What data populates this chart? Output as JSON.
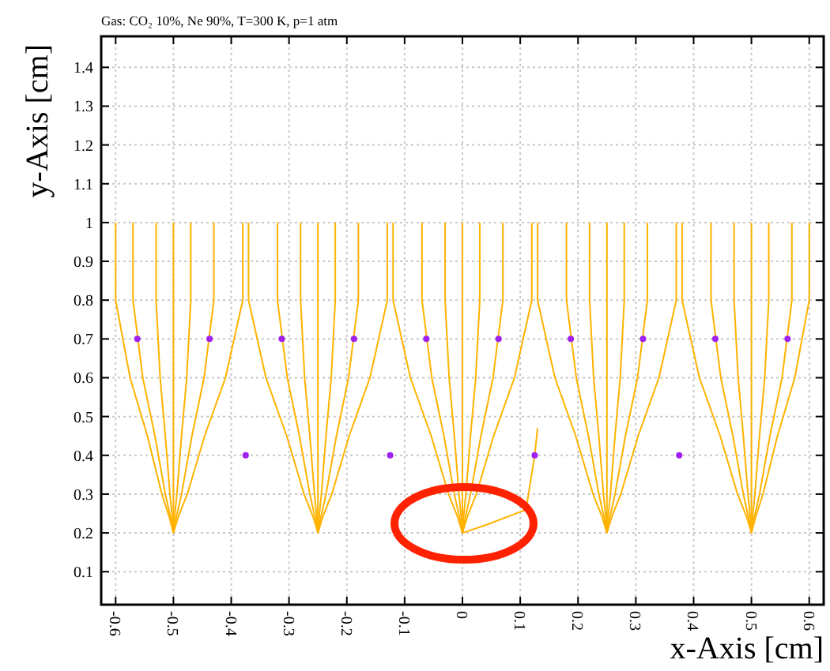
{
  "chart_data": {
    "type": "line",
    "title": "Gas: CO₂ 10%, Ne 90%, T=300 K, p=1 atm",
    "xlabel": "x-Axis [cm]",
    "ylabel": "y-Axis [cm]",
    "xlim": [
      -0.625,
      0.625
    ],
    "xticks": [
      -0.6,
      -0.5,
      -0.4,
      -0.3,
      -0.2,
      -0.1,
      0,
      0.1,
      0.2,
      0.3,
      0.4,
      0.5,
      0.6
    ],
    "ylim": [
      0.015,
      1.48
    ],
    "yticks": [
      0.1,
      0.2,
      0.3,
      0.4,
      0.5,
      0.6,
      0.7,
      0.8,
      0.9,
      1,
      1.1,
      1.2,
      1.3,
      1.4
    ],
    "grid": true,
    "line_style": "solid",
    "series": [
      {
        "color": "#ffb300",
        "x": [
          -0.6,
          -0.6,
          -0.575,
          -0.545,
          -0.52,
          -0.507,
          -0.5
        ],
        "values": [
          1,
          0.8,
          0.6,
          0.45,
          0.3,
          0.24,
          0.2
        ]
      },
      {
        "color": "#ffb300",
        "x": [
          -0.57,
          -0.57,
          -0.553,
          -0.532,
          -0.514,
          -0.505,
          -0.5
        ],
        "values": [
          1,
          0.8,
          0.6,
          0.45,
          0.3,
          0.24,
          0.2
        ]
      },
      {
        "color": "#ffb300",
        "x": [
          -0.53,
          -0.53,
          -0.523,
          -0.514,
          -0.506,
          -0.502,
          -0.5
        ],
        "values": [
          1,
          0.8,
          0.6,
          0.45,
          0.3,
          0.24,
          0.2
        ]
      },
      {
        "color": "#ffb300",
        "x": [
          -0.5,
          -0.5,
          -0.5,
          -0.5,
          -0.5,
          -0.5,
          -0.5
        ],
        "values": [
          1,
          0.8,
          0.6,
          0.45,
          0.3,
          0.24,
          0.2
        ]
      },
      {
        "color": "#ffb300",
        "x": [
          -0.47,
          -0.47,
          -0.477,
          -0.486,
          -0.494,
          -0.498,
          -0.5
        ],
        "values": [
          1,
          0.8,
          0.6,
          0.45,
          0.3,
          0.24,
          0.2
        ]
      },
      {
        "color": "#ffb300",
        "x": [
          -0.43,
          -0.43,
          -0.447,
          -0.468,
          -0.486,
          -0.495,
          -0.5
        ],
        "values": [
          1,
          0.8,
          0.6,
          0.45,
          0.3,
          0.24,
          0.2
        ]
      },
      {
        "color": "#ffb300",
        "x": [
          -0.38,
          -0.38,
          -0.41,
          -0.446,
          -0.476,
          -0.492,
          -0.5
        ],
        "values": [
          1,
          0.8,
          0.6,
          0.45,
          0.3,
          0.24,
          0.2
        ]
      },
      {
        "color": "#ffb300",
        "x": [
          -0.37,
          -0.37,
          -0.34,
          -0.304,
          -0.274,
          -0.258,
          -0.25
        ],
        "values": [
          1,
          0.8,
          0.6,
          0.45,
          0.3,
          0.24,
          0.2
        ]
      },
      {
        "color": "#ffb300",
        "x": [
          -0.32,
          -0.32,
          -0.303,
          -0.282,
          -0.264,
          -0.255,
          -0.25
        ],
        "values": [
          1,
          0.8,
          0.6,
          0.45,
          0.3,
          0.24,
          0.2
        ]
      },
      {
        "color": "#ffb300",
        "x": [
          -0.28,
          -0.28,
          -0.273,
          -0.264,
          -0.256,
          -0.252,
          -0.25
        ],
        "values": [
          1,
          0.8,
          0.6,
          0.45,
          0.3,
          0.24,
          0.2
        ]
      },
      {
        "color": "#ffb300",
        "x": [
          -0.25,
          -0.25,
          -0.25,
          -0.25,
          -0.25,
          -0.25,
          -0.25
        ],
        "values": [
          1,
          0.8,
          0.6,
          0.45,
          0.3,
          0.24,
          0.2
        ]
      },
      {
        "color": "#ffb300",
        "x": [
          -0.22,
          -0.22,
          -0.227,
          -0.236,
          -0.244,
          -0.248,
          -0.25
        ],
        "values": [
          1,
          0.8,
          0.6,
          0.45,
          0.3,
          0.24,
          0.2
        ]
      },
      {
        "color": "#ffb300",
        "x": [
          -0.18,
          -0.18,
          -0.197,
          -0.218,
          -0.236,
          -0.245,
          -0.25
        ],
        "values": [
          1,
          0.8,
          0.6,
          0.45,
          0.3,
          0.24,
          0.2
        ]
      },
      {
        "color": "#ffb300",
        "x": [
          -0.13,
          -0.13,
          -0.16,
          -0.196,
          -0.226,
          -0.242,
          -0.25
        ],
        "values": [
          1,
          0.8,
          0.6,
          0.45,
          0.3,
          0.24,
          0.2
        ]
      },
      {
        "color": "#ffb300",
        "x": [
          -0.12,
          -0.12,
          -0.09,
          -0.054,
          -0.024,
          -0.008,
          0
        ],
        "values": [
          1,
          0.8,
          0.6,
          0.45,
          0.3,
          0.24,
          0.2
        ]
      },
      {
        "color": "#ffb300",
        "x": [
          -0.07,
          -0.07,
          -0.053,
          -0.032,
          -0.014,
          -0.005,
          0
        ],
        "values": [
          1,
          0.8,
          0.6,
          0.45,
          0.3,
          0.24,
          0.2
        ]
      },
      {
        "color": "#ffb300",
        "x": [
          -0.03,
          -0.03,
          -0.023,
          -0.014,
          -0.006,
          -0.002,
          0
        ],
        "values": [
          1,
          0.8,
          0.6,
          0.45,
          0.3,
          0.24,
          0.2
        ]
      },
      {
        "color": "#ffb300",
        "x": [
          0,
          0,
          0,
          0,
          0,
          0,
          0
        ],
        "values": [
          1,
          0.8,
          0.6,
          0.45,
          0.3,
          0.24,
          0.2
        ]
      },
      {
        "color": "#ffb300",
        "x": [
          0.03,
          0.03,
          0.023,
          0.014,
          0.006,
          0.002,
          0
        ],
        "values": [
          1,
          0.8,
          0.6,
          0.45,
          0.3,
          0.24,
          0.2
        ]
      },
      {
        "color": "#ffb300",
        "x": [
          0.07,
          0.07,
          0.053,
          0.032,
          0.014,
          0.005,
          0
        ],
        "values": [
          1,
          0.8,
          0.6,
          0.45,
          0.3,
          0.24,
          0.2
        ]
      },
      {
        "color": "#ffb300",
        "x": [
          0.12,
          0.12,
          0.09,
          0.054,
          0.024,
          0.008,
          0
        ],
        "values": [
          1,
          0.8,
          0.6,
          0.45,
          0.3,
          0.24,
          0.2
        ]
      },
      {
        "color": "#ffb300",
        "x": [
          0.13,
          0.13,
          0.16,
          0.196,
          0.226,
          0.242,
          0.25
        ],
        "values": [
          1,
          0.8,
          0.6,
          0.45,
          0.3,
          0.24,
          0.2
        ]
      },
      {
        "color": "#ffb300",
        "x": [
          0.18,
          0.18,
          0.197,
          0.218,
          0.236,
          0.245,
          0.25
        ],
        "values": [
          1,
          0.8,
          0.6,
          0.45,
          0.3,
          0.24,
          0.2
        ]
      },
      {
        "color": "#ffb300",
        "x": [
          0.22,
          0.22,
          0.227,
          0.236,
          0.244,
          0.248,
          0.25
        ],
        "values": [
          1,
          0.8,
          0.6,
          0.45,
          0.3,
          0.24,
          0.2
        ]
      },
      {
        "color": "#ffb300",
        "x": [
          0.25,
          0.25,
          0.25,
          0.25,
          0.25,
          0.25,
          0.25
        ],
        "values": [
          1,
          0.8,
          0.6,
          0.45,
          0.3,
          0.24,
          0.2
        ]
      },
      {
        "color": "#ffb300",
        "x": [
          0.28,
          0.28,
          0.273,
          0.264,
          0.256,
          0.252,
          0.25
        ],
        "values": [
          1,
          0.8,
          0.6,
          0.45,
          0.3,
          0.24,
          0.2
        ]
      },
      {
        "color": "#ffb300",
        "x": [
          0.32,
          0.32,
          0.303,
          0.282,
          0.264,
          0.255,
          0.25
        ],
        "values": [
          1,
          0.8,
          0.6,
          0.45,
          0.3,
          0.24,
          0.2
        ]
      },
      {
        "color": "#ffb300",
        "x": [
          0.37,
          0.37,
          0.34,
          0.304,
          0.274,
          0.258,
          0.25
        ],
        "values": [
          1,
          0.8,
          0.6,
          0.45,
          0.3,
          0.24,
          0.2
        ]
      },
      {
        "color": "#ffb300",
        "x": [
          0.38,
          0.38,
          0.41,
          0.446,
          0.476,
          0.492,
          0.5
        ],
        "values": [
          1,
          0.8,
          0.6,
          0.45,
          0.3,
          0.24,
          0.2
        ]
      },
      {
        "color": "#ffb300",
        "x": [
          0.43,
          0.43,
          0.447,
          0.468,
          0.486,
          0.495,
          0.5
        ],
        "values": [
          1,
          0.8,
          0.6,
          0.45,
          0.3,
          0.24,
          0.2
        ]
      },
      {
        "color": "#ffb300",
        "x": [
          0.47,
          0.47,
          0.477,
          0.486,
          0.494,
          0.498,
          0.5
        ],
        "values": [
          1,
          0.8,
          0.6,
          0.45,
          0.3,
          0.24,
          0.2
        ]
      },
      {
        "color": "#ffb300",
        "x": [
          0.5,
          0.5,
          0.5,
          0.5,
          0.5,
          0.5,
          0.5
        ],
        "values": [
          1,
          0.8,
          0.6,
          0.45,
          0.3,
          0.24,
          0.2
        ]
      },
      {
        "color": "#ffb300",
        "x": [
          0.53,
          0.53,
          0.523,
          0.514,
          0.506,
          0.502,
          0.5
        ],
        "values": [
          1,
          0.8,
          0.6,
          0.45,
          0.3,
          0.24,
          0.2
        ]
      },
      {
        "color": "#ffb300",
        "x": [
          0.57,
          0.57,
          0.553,
          0.532,
          0.514,
          0.505,
          0.5
        ],
        "values": [
          1,
          0.8,
          0.6,
          0.45,
          0.3,
          0.24,
          0.2
        ]
      },
      {
        "color": "#ffb300",
        "x": [
          0.6,
          0.6,
          0.575,
          0.545,
          0.52,
          0.507,
          0.5
        ],
        "values": [
          1,
          0.8,
          0.6,
          0.45,
          0.3,
          0.24,
          0.2
        ]
      },
      {
        "color": "#ffb300",
        "x": [
          0.13,
          0.125,
          0.11,
          0.04,
          0
        ],
        "values": [
          0.47,
          0.4,
          0.26,
          0.22,
          0.2
        ]
      },
      {
        "type": "scatter",
        "marker": "circle",
        "color": "#a020f0",
        "x": [
          -0.5625,
          -0.4375,
          -0.3125,
          -0.1875,
          -0.0625,
          0.0625,
          0.1875,
          0.3125,
          0.4375,
          0.5625,
          -0.375,
          -0.125,
          0.125,
          0.375
        ],
        "values": [
          0.7,
          0.7,
          0.7,
          0.7,
          0.7,
          0.7,
          0.7,
          0.7,
          0.7,
          0.7,
          0.4,
          0.4,
          0.4,
          0.4
        ]
      }
    ]
  }
}
